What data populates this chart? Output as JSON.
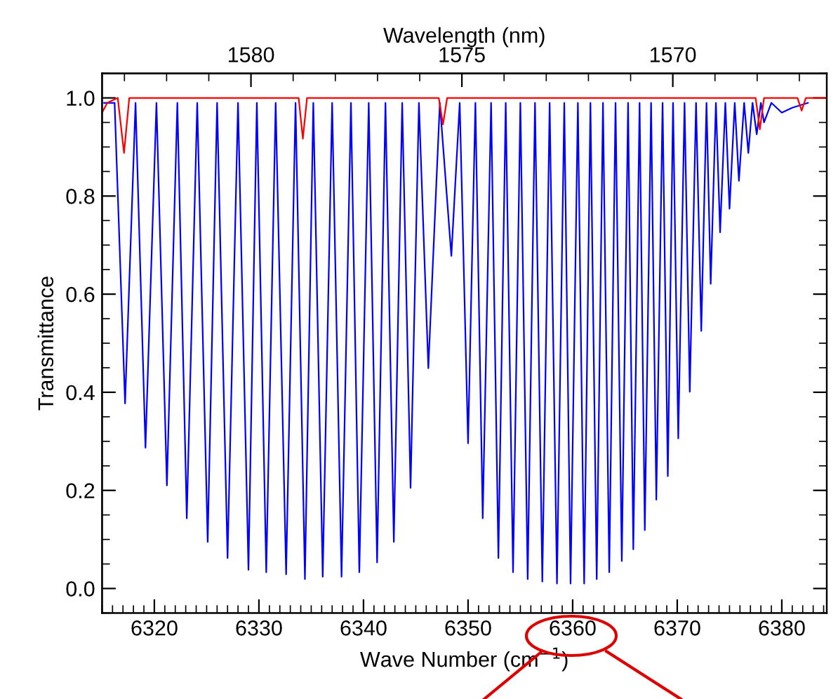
{
  "chart_data": {
    "type": "line",
    "xlabel": "Wave Number (cm$^{−1}$)",
    "ylabel": "Transmittance",
    "x2label": "Wavelength (nm)",
    "xlim": [
      6315,
      6384.3
    ],
    "xticks": [
      6320,
      6330,
      6340,
      6350,
      6360,
      6370,
      6380
    ],
    "ylim": [
      -0.05,
      1.05
    ],
    "yticks": [
      {
        "value": 0,
        "label": "0.0"
      },
      0.2,
      0.4,
      0.6,
      0.8,
      {
        "value": 1,
        "label": "1.0"
      }
    ],
    "x2lim": [
      1583.53,
      1566.35
    ],
    "x2ticks": [
      1580,
      1575,
      1570
    ],
    "series": [
      {
        "color": "#0000ff",
        "x": [
          6315.2,
          6316.2,
          6317.2,
          6318.2,
          6319.15,
          6320.2,
          6321.2,
          6322.2,
          6323.1,
          6324.1,
          6325.1,
          6326.0,
          6327.0,
          6328.0,
          6329.0,
          6329.8,
          6330.7,
          6331.6,
          6332.6,
          6333.5,
          6334.4,
          6335.2,
          6336.1,
          6337.0,
          6337.9,
          6338.8,
          6339.6,
          6340.5,
          6341.3,
          6342.1,
          6342.9,
          6343.7,
          6344.5,
          6345.3,
          6346.2,
          6347.3,
          6348.4,
          6349.2,
          6350.0,
          6350.7,
          6351.4,
          6352.2,
          6352.9,
          6353.6,
          6354.3,
          6355.0,
          6355.7,
          6356.4,
          6357.1,
          6357.8,
          6358.5,
          6359.2,
          6359.8,
          6360.5,
          6361.1,
          6361.7,
          6362.3,
          6362.9,
          6363.5,
          6364.1,
          6364.7,
          6365.3,
          6365.8,
          6366.4,
          6366.9,
          6367.5,
          6368.0,
          6368.6,
          6369.1,
          6369.6,
          6370.1,
          6370.7,
          6371.2,
          6371.8,
          6372.3,
          6372.8,
          6373.2,
          6373.7,
          6374.1,
          6374.6,
          6375.0,
          6375.5,
          6375.9,
          6376.4,
          6376.8,
          6377.2,
          6377.6,
          6378.0,
          6378.3,
          6379.0,
          6380.0,
          6381.0,
          6382.5
        ],
        "values": [
          0.99,
          0.99,
          0.377,
          0.99,
          0.287,
          0.99,
          0.21,
          0.99,
          0.143,
          0.99,
          0.095,
          0.99,
          0.062,
          0.99,
          0.038,
          0.99,
          0.033,
          0.99,
          0.029,
          0.99,
          0.019,
          0.99,
          0.024,
          0.99,
          0.024,
          0.99,
          0.033,
          0.99,
          0.053,
          0.99,
          0.095,
          0.99,
          0.205,
          0.99,
          0.449,
          0.99,
          0.678,
          0.99,
          0.296,
          0.99,
          0.143,
          0.99,
          0.062,
          0.99,
          0.033,
          0.99,
          0.019,
          0.99,
          0.014,
          0.99,
          0.01,
          0.99,
          0.01,
          0.99,
          0.01,
          0.99,
          0.019,
          0.99,
          0.033,
          0.99,
          0.056,
          0.99,
          0.08,
          0.99,
          0.119,
          0.99,
          0.181,
          0.99,
          0.229,
          0.99,
          0.306,
          0.99,
          0.401,
          0.99,
          0.525,
          0.99,
          0.621,
          0.99,
          0.726,
          0.99,
          0.774,
          0.99,
          0.831,
          0.99,
          0.888,
          0.99,
          0.926,
          0.99,
          0.95,
          0.99,
          0.97,
          0.98,
          0.99
        ]
      },
      {
        "color": "#ff0000",
        "x": [
          6315.0,
          6315.5,
          6316.5,
          6317.1,
          6317.6,
          6333.8,
          6334.2,
          6334.6,
          6347.2,
          6347.6,
          6348.0,
          6377.5,
          6377.9,
          6378.3,
          6381.5,
          6381.9,
          6382.3,
          6384.3
        ],
        "values": [
          0.97,
          0.99,
          1.0,
          0.888,
          1.0,
          1.0,
          0.917,
          1.0,
          1.0,
          0.946,
          1.0,
          1.0,
          0.936,
          1.0,
          1.0,
          0.974,
          1.0,
          1.0
        ]
      }
    ]
  }
}
